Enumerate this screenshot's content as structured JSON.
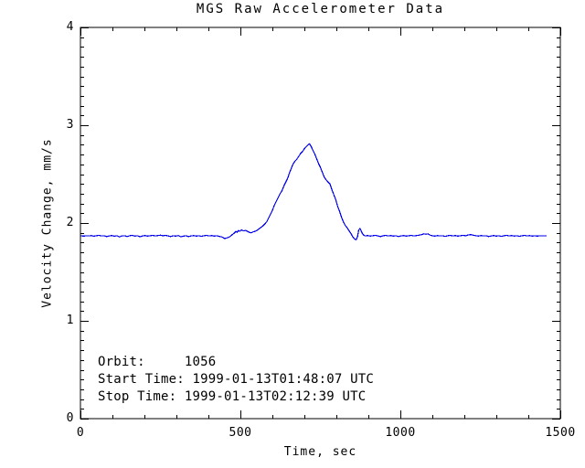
{
  "colors": {
    "line": "#0000EE",
    "axis": "#000000",
    "background": "#FFFFFF",
    "text": "#000000"
  },
  "annotations": {
    "orbit": "Orbit:     1056",
    "start": "Start Time: 1999-01-13T01:48:07 UTC",
    "stop": "Stop Time: 1999-01-13T02:12:39 UTC"
  },
  "chart_data": {
    "type": "line",
    "title": "MGS Raw Accelerometer Data",
    "xlabel": "Time, sec",
    "ylabel": "Velocity Change, mm/s",
    "xlim": [
      0,
      1500
    ],
    "ylim": [
      0,
      4
    ],
    "x_major_ticks": [
      0,
      500,
      1000,
      1500
    ],
    "x_tick_labels": [
      "0",
      "500",
      "1000",
      "1500"
    ],
    "x_minor_step": 100,
    "y_major_ticks": [
      0,
      1,
      2,
      3,
      4
    ],
    "y_tick_labels": [
      "0",
      "1",
      "2",
      "3",
      "4"
    ],
    "y_minor_step": 0.1,
    "grid": false,
    "legend": null,
    "baseline_value": 1.87,
    "peak": {
      "t": 716,
      "v": 2.81
    },
    "series": [
      {
        "name": "velocity-change",
        "color": "#0000EE",
        "points": [
          [
            2,
            1.87
          ],
          [
            10,
            1.865
          ],
          [
            18,
            1.87
          ],
          [
            26,
            1.868
          ],
          [
            34,
            1.872
          ],
          [
            42,
            1.865
          ],
          [
            50,
            1.87
          ],
          [
            58,
            1.875
          ],
          [
            66,
            1.868
          ],
          [
            74,
            1.87
          ],
          [
            82,
            1.862
          ],
          [
            90,
            1.868
          ],
          [
            98,
            1.872
          ],
          [
            106,
            1.865
          ],
          [
            114,
            1.87
          ],
          [
            122,
            1.858
          ],
          [
            130,
            1.868
          ],
          [
            138,
            1.87
          ],
          [
            146,
            1.862
          ],
          [
            154,
            1.87
          ],
          [
            162,
            1.874
          ],
          [
            170,
            1.866
          ],
          [
            178,
            1.87
          ],
          [
            186,
            1.86
          ],
          [
            194,
            1.868
          ],
          [
            202,
            1.872
          ],
          [
            210,
            1.866
          ],
          [
            218,
            1.87
          ],
          [
            226,
            1.874
          ],
          [
            234,
            1.868
          ],
          [
            242,
            1.872
          ],
          [
            250,
            1.876
          ],
          [
            258,
            1.87
          ],
          [
            266,
            1.874
          ],
          [
            274,
            1.868
          ],
          [
            282,
            1.862
          ],
          [
            290,
            1.87
          ],
          [
            298,
            1.866
          ],
          [
            306,
            1.872
          ],
          [
            314,
            1.86
          ],
          [
            322,
            1.866
          ],
          [
            330,
            1.87
          ],
          [
            338,
            1.862
          ],
          [
            346,
            1.868
          ],
          [
            354,
            1.872
          ],
          [
            362,
            1.866
          ],
          [
            370,
            1.87
          ],
          [
            378,
            1.864
          ],
          [
            386,
            1.87
          ],
          [
            394,
            1.874
          ],
          [
            402,
            1.868
          ],
          [
            410,
            1.872
          ],
          [
            418,
            1.866
          ],
          [
            426,
            1.87
          ],
          [
            434,
            1.864
          ],
          [
            442,
            1.858
          ],
          [
            450,
            1.842
          ],
          [
            456,
            1.846
          ],
          [
            462,
            1.852
          ],
          [
            468,
            1.862
          ],
          [
            474,
            1.88
          ],
          [
            480,
            1.895
          ],
          [
            486,
            1.915
          ],
          [
            490,
            1.905
          ],
          [
            494,
            1.925
          ],
          [
            498,
            1.915
          ],
          [
            504,
            1.93
          ],
          [
            510,
            1.92
          ],
          [
            516,
            1.925
          ],
          [
            522,
            1.915
          ],
          [
            528,
            1.905
          ],
          [
            534,
            1.9
          ],
          [
            540,
            1.91
          ],
          [
            546,
            1.915
          ],
          [
            552,
            1.925
          ],
          [
            558,
            1.94
          ],
          [
            564,
            1.955
          ],
          [
            570,
            1.97
          ],
          [
            576,
            1.99
          ],
          [
            582,
            2.01
          ],
          [
            588,
            2.05
          ],
          [
            594,
            2.09
          ],
          [
            600,
            2.13
          ],
          [
            606,
            2.18
          ],
          [
            612,
            2.22
          ],
          [
            618,
            2.26
          ],
          [
            624,
            2.3
          ],
          [
            630,
            2.33
          ],
          [
            636,
            2.38
          ],
          [
            642,
            2.42
          ],
          [
            648,
            2.46
          ],
          [
            652,
            2.5
          ],
          [
            658,
            2.55
          ],
          [
            664,
            2.6
          ],
          [
            670,
            2.63
          ],
          [
            676,
            2.65
          ],
          [
            682,
            2.68
          ],
          [
            688,
            2.71
          ],
          [
            694,
            2.73
          ],
          [
            700,
            2.76
          ],
          [
            706,
            2.78
          ],
          [
            712,
            2.8
          ],
          [
            716,
            2.81
          ],
          [
            720,
            2.79
          ],
          [
            726,
            2.75
          ],
          [
            732,
            2.71
          ],
          [
            738,
            2.66
          ],
          [
            744,
            2.61
          ],
          [
            750,
            2.57
          ],
          [
            756,
            2.52
          ],
          [
            762,
            2.47
          ],
          [
            768,
            2.44
          ],
          [
            774,
            2.42
          ],
          [
            780,
            2.4
          ],
          [
            786,
            2.34
          ],
          [
            792,
            2.29
          ],
          [
            798,
            2.24
          ],
          [
            804,
            2.17
          ],
          [
            810,
            2.12
          ],
          [
            816,
            2.06
          ],
          [
            822,
            2.01
          ],
          [
            828,
            1.975
          ],
          [
            834,
            1.95
          ],
          [
            840,
            1.92
          ],
          [
            846,
            1.89
          ],
          [
            852,
            1.855
          ],
          [
            858,
            1.835
          ],
          [
            862,
            1.83
          ],
          [
            866,
            1.86
          ],
          [
            870,
            1.93
          ],
          [
            874,
            1.945
          ],
          [
            878,
            1.915
          ],
          [
            882,
            1.89
          ],
          [
            886,
            1.875
          ],
          [
            890,
            1.868
          ],
          [
            898,
            1.872
          ],
          [
            906,
            1.866
          ],
          [
            914,
            1.87
          ],
          [
            922,
            1.874
          ],
          [
            930,
            1.868
          ],
          [
            938,
            1.862
          ],
          [
            946,
            1.87
          ],
          [
            954,
            1.874
          ],
          [
            962,
            1.868
          ],
          [
            970,
            1.872
          ],
          [
            978,
            1.866
          ],
          [
            986,
            1.87
          ],
          [
            994,
            1.862
          ],
          [
            1002,
            1.868
          ],
          [
            1010,
            1.872
          ],
          [
            1018,
            1.866
          ],
          [
            1026,
            1.87
          ],
          [
            1034,
            1.874
          ],
          [
            1042,
            1.868
          ],
          [
            1050,
            1.872
          ],
          [
            1058,
            1.876
          ],
          [
            1066,
            1.88
          ],
          [
            1074,
            1.89
          ],
          [
            1080,
            1.885
          ],
          [
            1086,
            1.89
          ],
          [
            1092,
            1.878
          ],
          [
            1100,
            1.87
          ],
          [
            1108,
            1.866
          ],
          [
            1116,
            1.872
          ],
          [
            1124,
            1.868
          ],
          [
            1132,
            1.87
          ],
          [
            1140,
            1.864
          ],
          [
            1148,
            1.87
          ],
          [
            1156,
            1.874
          ],
          [
            1164,
            1.868
          ],
          [
            1172,
            1.872
          ],
          [
            1180,
            1.866
          ],
          [
            1188,
            1.87
          ],
          [
            1196,
            1.874
          ],
          [
            1204,
            1.87
          ],
          [
            1212,
            1.878
          ],
          [
            1220,
            1.882
          ],
          [
            1228,
            1.876
          ],
          [
            1236,
            1.87
          ],
          [
            1244,
            1.866
          ],
          [
            1252,
            1.872
          ],
          [
            1260,
            1.868
          ],
          [
            1268,
            1.87
          ],
          [
            1276,
            1.862
          ],
          [
            1284,
            1.868
          ],
          [
            1292,
            1.872
          ],
          [
            1300,
            1.866
          ],
          [
            1308,
            1.87
          ],
          [
            1316,
            1.864
          ],
          [
            1324,
            1.87
          ],
          [
            1332,
            1.874
          ],
          [
            1340,
            1.868
          ],
          [
            1348,
            1.872
          ],
          [
            1356,
            1.866
          ],
          [
            1364,
            1.87
          ],
          [
            1372,
            1.864
          ],
          [
            1380,
            1.87
          ],
          [
            1388,
            1.874
          ],
          [
            1396,
            1.868
          ],
          [
            1404,
            1.872
          ],
          [
            1412,
            1.866
          ],
          [
            1420,
            1.87
          ],
          [
            1428,
            1.866
          ],
          [
            1436,
            1.87
          ],
          [
            1444,
            1.868
          ],
          [
            1452,
            1.87
          ],
          [
            1457,
            1.87
          ]
        ]
      }
    ]
  }
}
